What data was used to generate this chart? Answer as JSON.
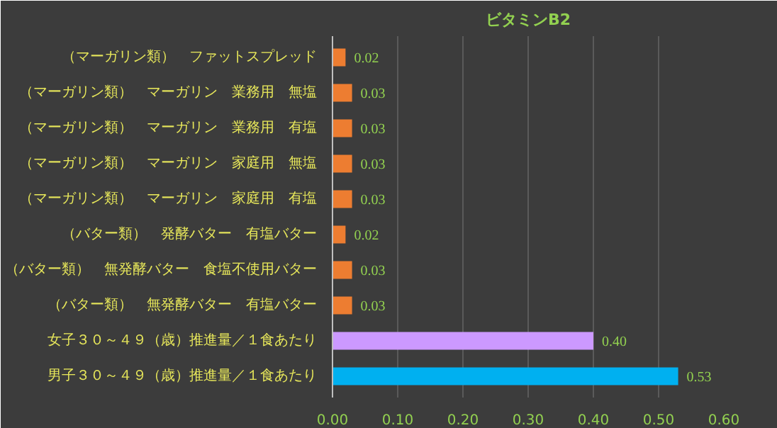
{
  "chart_data": {
    "type": "bar",
    "orientation": "horizontal",
    "title": "ビタミンB2",
    "categories": [
      "（マーガリン類）　ファットスプレッド",
      "（マーガリン類）　マーガリン　業務用　無塩",
      "（マーガリン類）　マーガリン　業務用　有塩",
      "（マーガリン類）　マーガリン　家庭用　無塩",
      "（マーガリン類）　マーガリン　家庭用　有塩",
      "（バター類）　発酵バター　有塩バター",
      "（バター類）　無発酵バター　食塩不使用バター",
      "（バター類）　無発酵バター　有塩バター",
      "女子３０～４９（歳）推進量／１食あたり",
      "男子３０～４９（歳）推進量／１食あたり"
    ],
    "values": [
      0.02,
      0.03,
      0.03,
      0.03,
      0.03,
      0.02,
      0.03,
      0.03,
      0.4,
      0.53
    ],
    "colors": [
      "#ed7d31",
      "#ed7d31",
      "#ed7d31",
      "#ed7d31",
      "#ed7d31",
      "#ed7d31",
      "#ed7d31",
      "#ed7d31",
      "#cc99ff",
      "#00b0f0"
    ],
    "value_labels": [
      "0.02",
      "0.03",
      "0.03",
      "0.03",
      "0.03",
      "0.02",
      "0.03",
      "0.03",
      "0.40",
      "0.53"
    ],
    "xlim": [
      0,
      0.6
    ],
    "xticks": [
      "0.00",
      "0.10",
      "0.20",
      "0.30",
      "0.40",
      "0.50",
      "0.60"
    ],
    "grid": "x"
  }
}
